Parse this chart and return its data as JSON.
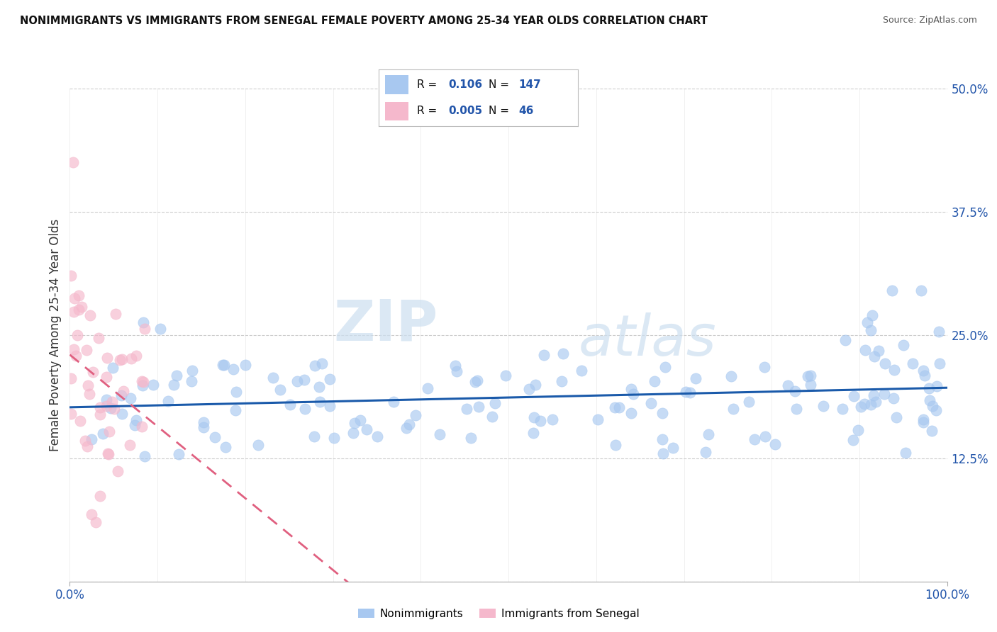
{
  "title": "NONIMMIGRANTS VS IMMIGRANTS FROM SENEGAL FEMALE POVERTY AMONG 25-34 YEAR OLDS CORRELATION CHART",
  "source": "Source: ZipAtlas.com",
  "ylabel": "Female Poverty Among 25-34 Year Olds",
  "xlim": [
    0,
    1.0
  ],
  "ylim": [
    0,
    0.5
  ],
  "yticks": [
    0.0,
    0.125,
    0.25,
    0.375,
    0.5
  ],
  "ytick_labels": [
    "",
    "12.5%",
    "25.0%",
    "37.5%",
    "50.0%"
  ],
  "legend_R1": "0.106",
  "legend_N1": "147",
  "legend_R2": "0.005",
  "legend_N2": "46",
  "color_nonimm": "#a8c8f0",
  "color_imm": "#f5b8cc",
  "line_color_nonimm": "#1a5aaa",
  "line_color_imm": "#e06080",
  "watermark_zip": "ZIP",
  "watermark_atlas": "atlas",
  "background_color": "#ffffff",
  "grid_color": "#cccccc",
  "title_color": "#111111",
  "source_color": "#555555",
  "axis_label_color": "#333333",
  "tick_label_color": "#2255aa",
  "nonimm_seed": 42,
  "imm_seed": 7,
  "n_nonimm": 147,
  "n_imm": 46
}
